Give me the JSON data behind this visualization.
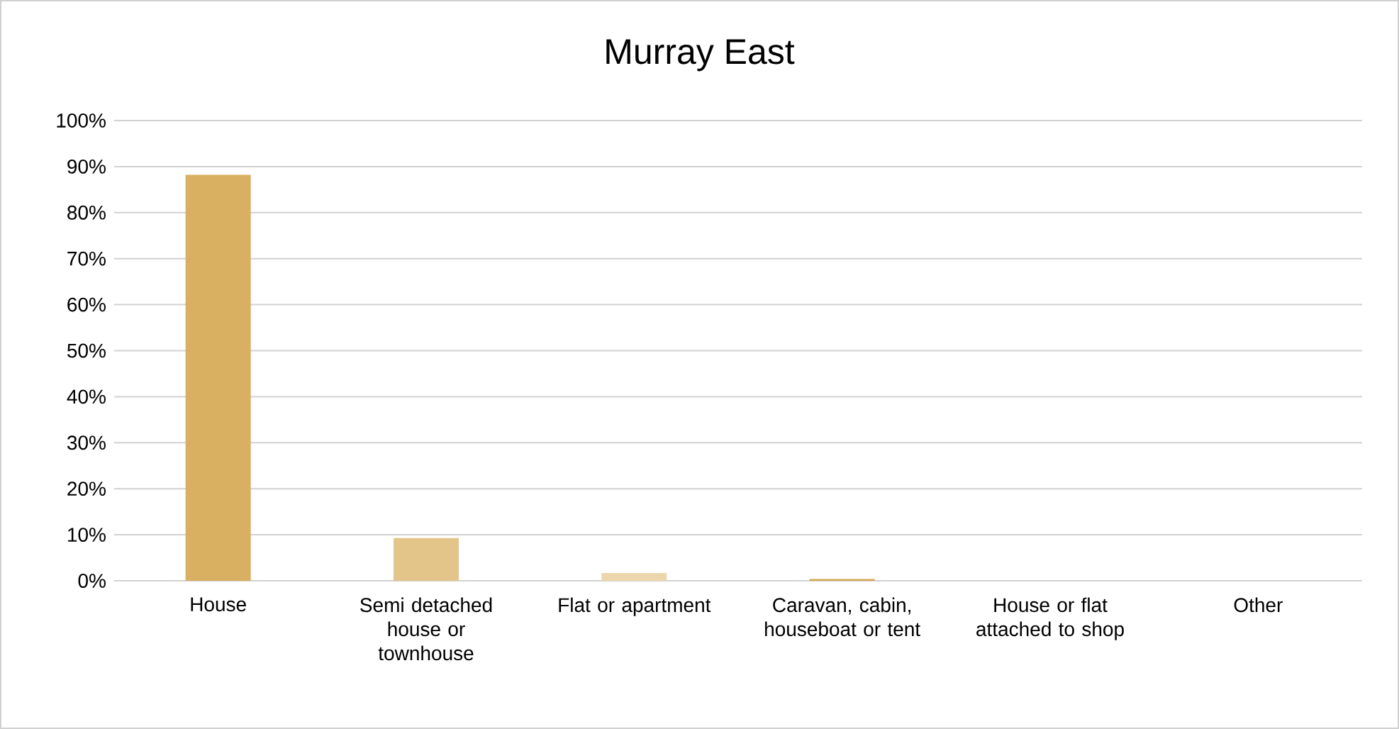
{
  "chart_data": {
    "type": "bar",
    "title": "Murray East",
    "categories": [
      "House",
      "Semi detached house or townhouse",
      "Flat or apartment",
      "Caravan, cabin, houseboat or tent",
      "House or flat attached to shop",
      "Other"
    ],
    "values": [
      88.2,
      9.3,
      1.7,
      0.4,
      0,
      0
    ],
    "colors": [
      "#d9b062",
      "#e3c58a",
      "#ecd7ac",
      "#d4a94f",
      "#d9b062",
      "#d9b062"
    ],
    "ylim": [
      0,
      100
    ],
    "yticks": [
      {
        "value": 0,
        "label": "0%"
      },
      {
        "value": 10,
        "label": "10%"
      },
      {
        "value": 20,
        "label": "20%"
      },
      {
        "value": 30,
        "label": "30%"
      },
      {
        "value": 40,
        "label": "40%"
      },
      {
        "value": 50,
        "label": "50%"
      },
      {
        "value": 60,
        "label": "60%"
      },
      {
        "value": 70,
        "label": "70%"
      },
      {
        "value": 80,
        "label": "80%"
      },
      {
        "value": 90,
        "label": "90%"
      },
      {
        "value": 100,
        "label": "100%"
      }
    ],
    "grid": "y"
  }
}
